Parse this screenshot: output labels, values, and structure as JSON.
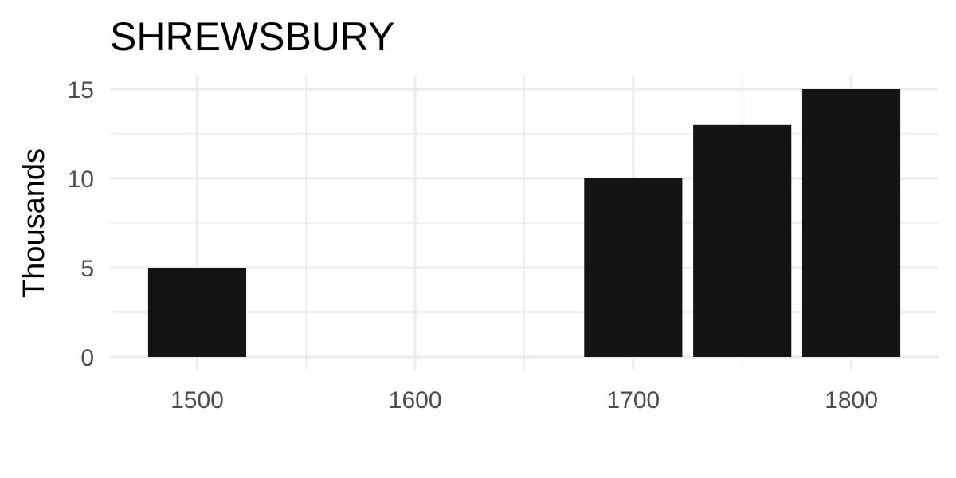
{
  "chart_data": {
    "type": "bar",
    "title": "SHREWSBURY",
    "xlabel": "",
    "ylabel": "Thousands",
    "x": [
      1500,
      1700,
      1750,
      1800
    ],
    "values": [
      5,
      10,
      13,
      15
    ],
    "bar_width_years": 45,
    "xlim": [
      1460,
      1840
    ],
    "ylim": [
      0,
      15.6
    ],
    "x_ticks": [
      1500,
      1600,
      1700,
      1800
    ],
    "x_minor_ticks": [
      1550,
      1650,
      1750
    ],
    "y_ticks": [
      0,
      5,
      10,
      15
    ],
    "y_minor_ticks": [
      2.5,
      7.5,
      12.5
    ],
    "grid": true,
    "legend": "none",
    "colors": {
      "bar": "#141414",
      "grid": "#ebebeb",
      "tick_text": "#4d4d4d",
      "title": "#000000"
    }
  }
}
